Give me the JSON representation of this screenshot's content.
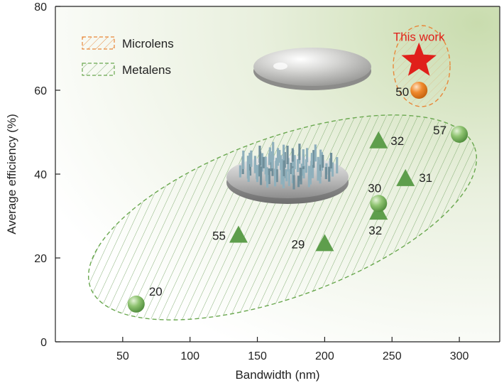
{
  "chart_data": {
    "type": "scatter",
    "xlabel": "Bandwidth (nm)",
    "ylabel": "Average efficiency (%)",
    "xlim": [
      0,
      330
    ],
    "ylim": [
      0,
      80
    ],
    "xticks": [
      50,
      100,
      150,
      200,
      250,
      300
    ],
    "yticks": [
      0,
      20,
      40,
      60,
      80
    ],
    "grid": false,
    "legend": {
      "placement": "top-left",
      "entries": [
        {
          "name": "Microlens",
          "color": "#e8883a"
        },
        {
          "name": "Metalens",
          "color": "#6aa84f"
        }
      ]
    },
    "series": [
      {
        "name": "Metalens",
        "color": "#5e9e4c",
        "points": [
          {
            "x": 60,
            "y": 9,
            "marker": "circle",
            "label": "20"
          },
          {
            "x": 136,
            "y": 25.5,
            "marker": "triangle",
            "label": "55"
          },
          {
            "x": 200,
            "y": 23.5,
            "marker": "triangle",
            "label": "29"
          },
          {
            "x": 240,
            "y": 48,
            "marker": "triangle",
            "label": "32"
          },
          {
            "x": 240,
            "y": 31,
            "marker": "triangle",
            "label": "32"
          },
          {
            "x": 240,
            "y": 33,
            "marker": "circle",
            "label": "30"
          },
          {
            "x": 260,
            "y": 39,
            "marker": "triangle",
            "label": "31"
          },
          {
            "x": 300,
            "y": 49.5,
            "marker": "circle",
            "label": "57"
          }
        ]
      },
      {
        "name": "Microlens",
        "color": "#e8883a",
        "points": [
          {
            "x": 270,
            "y": 60,
            "marker": "circle",
            "label": "50"
          }
        ]
      },
      {
        "name": "This work",
        "color": "#e0201b",
        "points": [
          {
            "x": 270,
            "y": 67,
            "marker": "star",
            "label": "This work"
          }
        ]
      }
    ]
  }
}
